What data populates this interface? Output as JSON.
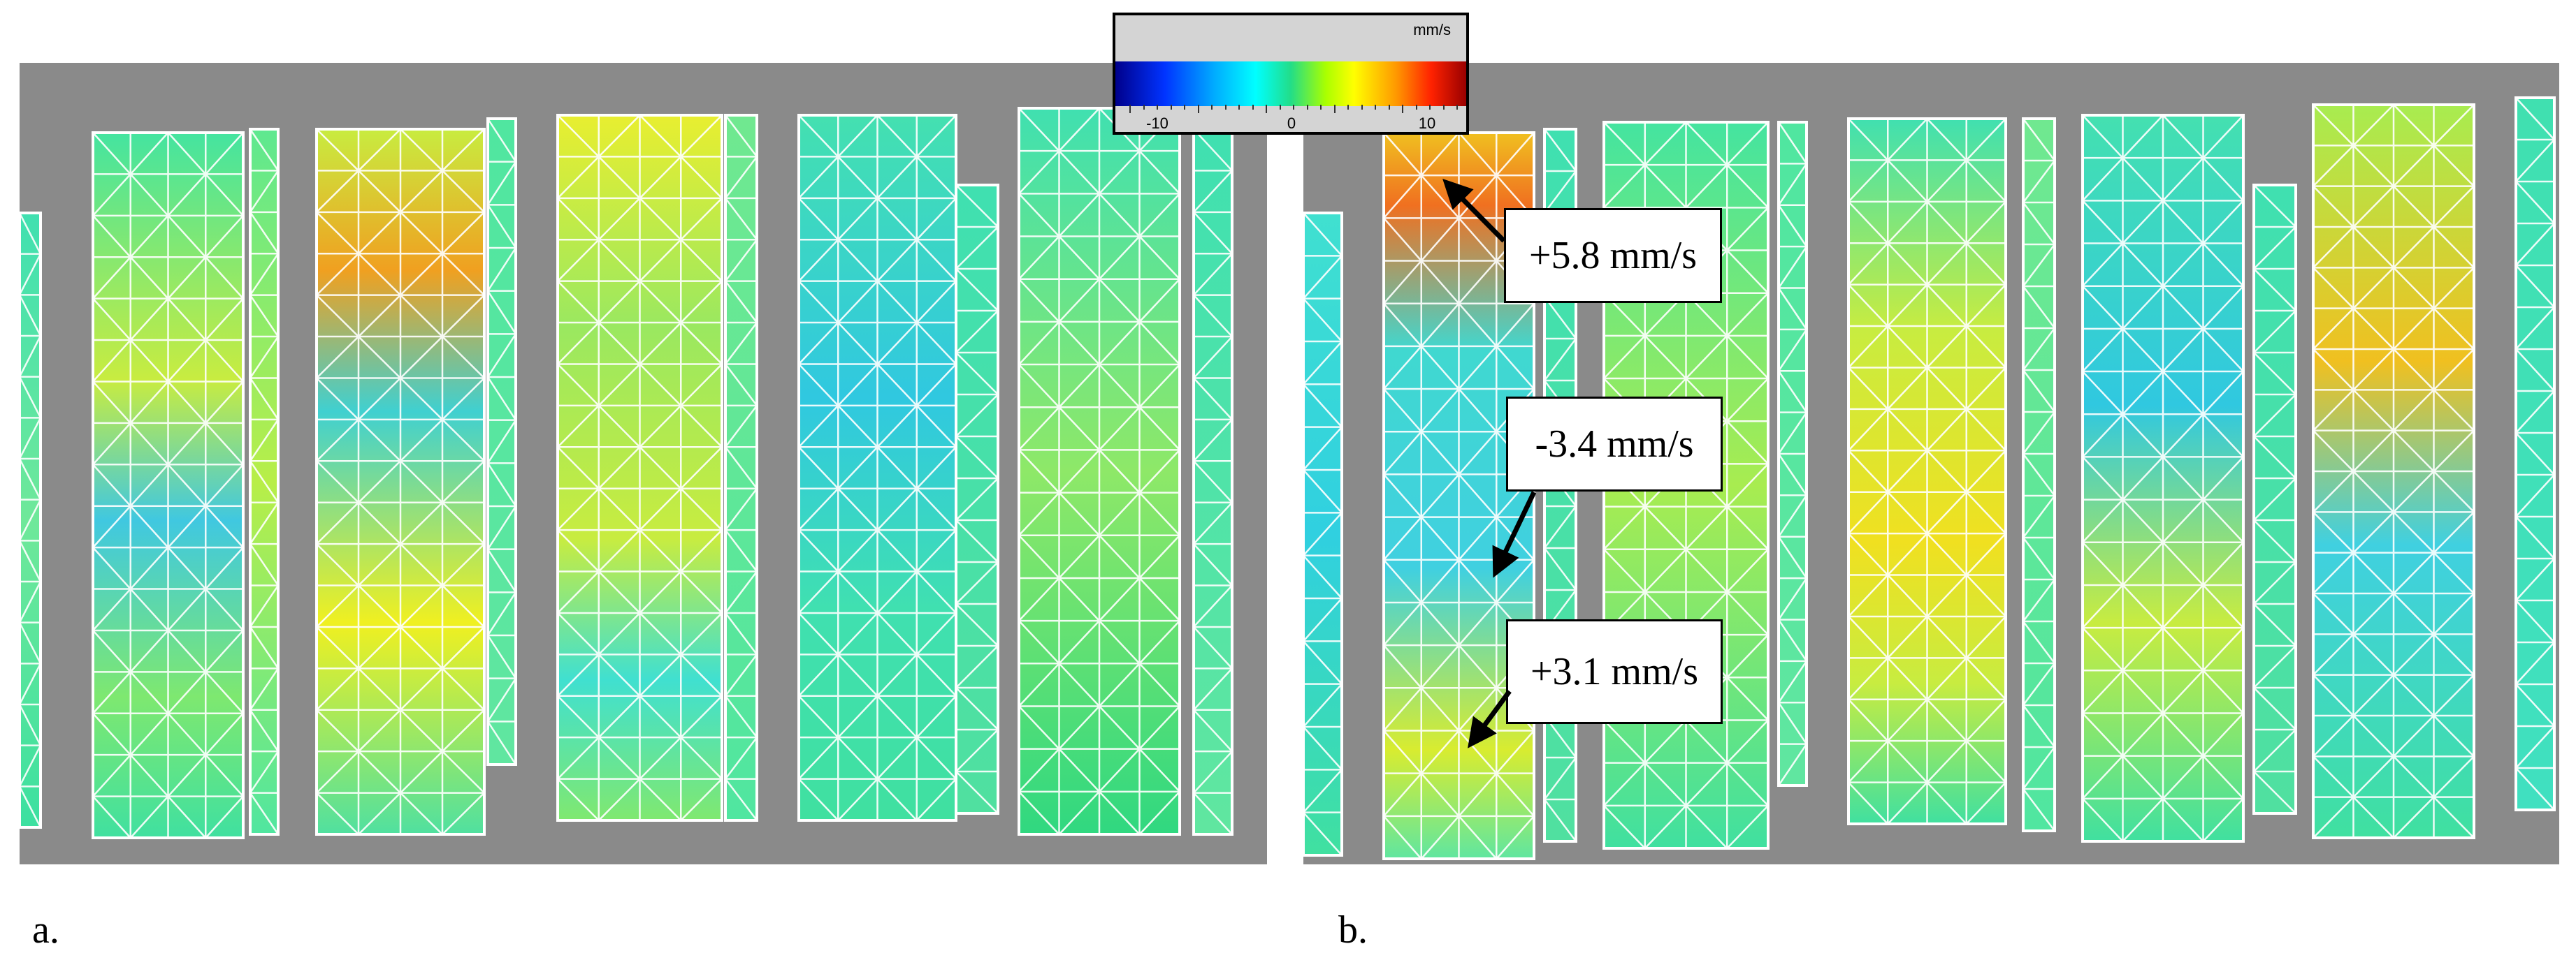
{
  "colorbar": {
    "unit": "mm/s",
    "min": -12,
    "max": 12,
    "tick_labels": [
      "-10",
      "0",
      "10"
    ],
    "colors": [
      "#00008b",
      "#0033ff",
      "#00aaff",
      "#00ffff",
      "#22dd88",
      "#aaff00",
      "#ffff00",
      "#ff9900",
      "#ff2200",
      "#990000"
    ]
  },
  "panels": [
    {
      "label": "a.",
      "background": "#8a8a8a",
      "mesh_color": "#ffffff"
    },
    {
      "label": "b.",
      "background": "#8a8a8a",
      "mesh_color": "#ffffff"
    }
  ],
  "annotations": [
    {
      "text": "+5.8 mm/s"
    },
    {
      "text": "-3.4 mm/s"
    },
    {
      "text": "+3.1 mm/s"
    }
  ]
}
